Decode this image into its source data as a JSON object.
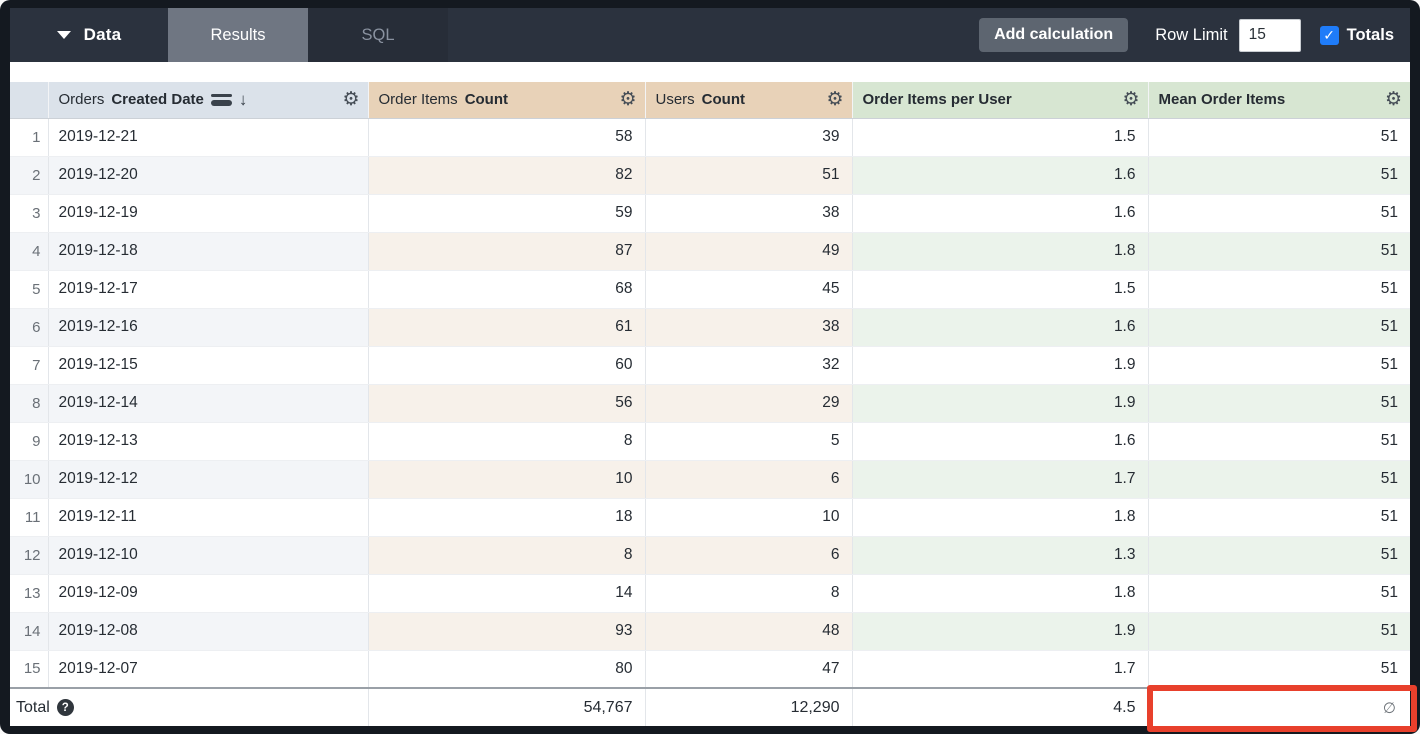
{
  "topbar": {
    "data_menu": {
      "label": "Data"
    },
    "tabs": {
      "results": "Results",
      "sql": "SQL"
    },
    "add_calculation": "Add calculation",
    "row_limit": {
      "label": "Row Limit",
      "value": "15"
    },
    "totals": {
      "label": "Totals",
      "checked": true
    }
  },
  "icons": {
    "gear": "⚙",
    "sort_desc_arrow": "↓",
    "check": "✓",
    "help": "?"
  },
  "table": {
    "headers": {
      "orders_created_date": {
        "prefix": "Orders",
        "bold": "Created Date"
      },
      "order_items_count": {
        "prefix": "Order Items",
        "bold": "Count"
      },
      "users_count": {
        "prefix": "Users",
        "bold": "Count"
      },
      "order_items_per_user": {
        "bold": "Order Items per User"
      },
      "mean_order_items": {
        "bold": "Mean Order Items"
      }
    },
    "rows": [
      {
        "num": "1",
        "date": "2019-12-21",
        "order_items": "58",
        "users": "39",
        "per_user": "1.5",
        "mean": "51"
      },
      {
        "num": "2",
        "date": "2019-12-20",
        "order_items": "82",
        "users": "51",
        "per_user": "1.6",
        "mean": "51"
      },
      {
        "num": "3",
        "date": "2019-12-19",
        "order_items": "59",
        "users": "38",
        "per_user": "1.6",
        "mean": "51"
      },
      {
        "num": "4",
        "date": "2019-12-18",
        "order_items": "87",
        "users": "49",
        "per_user": "1.8",
        "mean": "51"
      },
      {
        "num": "5",
        "date": "2019-12-17",
        "order_items": "68",
        "users": "45",
        "per_user": "1.5",
        "mean": "51"
      },
      {
        "num": "6",
        "date": "2019-12-16",
        "order_items": "61",
        "users": "38",
        "per_user": "1.6",
        "mean": "51"
      },
      {
        "num": "7",
        "date": "2019-12-15",
        "order_items": "60",
        "users": "32",
        "per_user": "1.9",
        "mean": "51"
      },
      {
        "num": "8",
        "date": "2019-12-14",
        "order_items": "56",
        "users": "29",
        "per_user": "1.9",
        "mean": "51"
      },
      {
        "num": "9",
        "date": "2019-12-13",
        "order_items": "8",
        "users": "5",
        "per_user": "1.6",
        "mean": "51"
      },
      {
        "num": "10",
        "date": "2019-12-12",
        "order_items": "10",
        "users": "6",
        "per_user": "1.7",
        "mean": "51"
      },
      {
        "num": "11",
        "date": "2019-12-11",
        "order_items": "18",
        "users": "10",
        "per_user": "1.8",
        "mean": "51"
      },
      {
        "num": "12",
        "date": "2019-12-10",
        "order_items": "8",
        "users": "6",
        "per_user": "1.3",
        "mean": "51"
      },
      {
        "num": "13",
        "date": "2019-12-09",
        "order_items": "14",
        "users": "8",
        "per_user": "1.8",
        "mean": "51"
      },
      {
        "num": "14",
        "date": "2019-12-08",
        "order_items": "93",
        "users": "48",
        "per_user": "1.9",
        "mean": "51"
      },
      {
        "num": "15",
        "date": "2019-12-07",
        "order_items": "80",
        "users": "47",
        "per_user": "1.7",
        "mean": "51"
      }
    ],
    "totals_row": {
      "label": "Total",
      "order_items": "54,767",
      "users": "12,290",
      "per_user": "4.5",
      "mean": "∅",
      "mean_highlighted": true
    }
  },
  "colors": {
    "topbar_bg": "#2b323e",
    "frame_bg": "#141920",
    "accent_blue": "#1f7cf9",
    "highlight_red": "#e8402c",
    "dimension_header_bg": "#dbe2ea",
    "measure_header_bg": "#e8d2b8",
    "calculation_header_bg": "#d7e6d2"
  }
}
